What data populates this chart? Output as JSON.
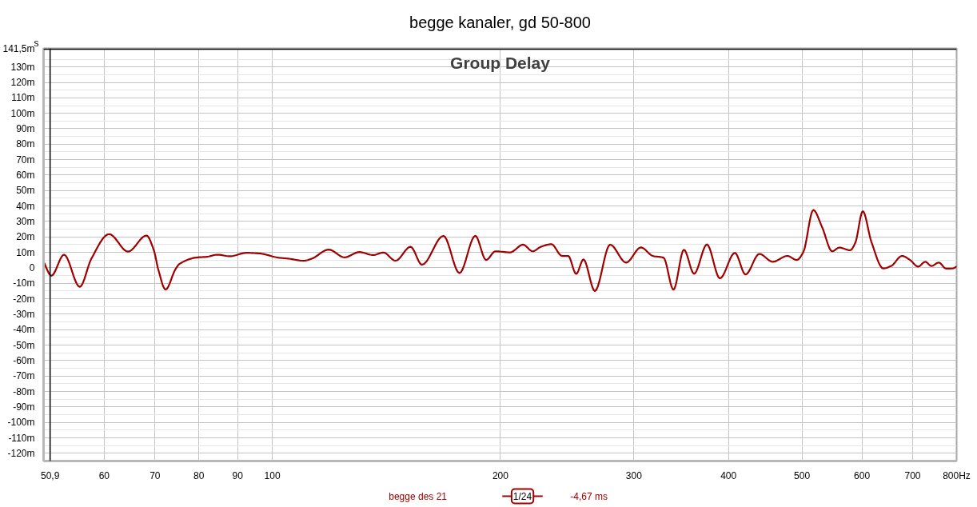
{
  "chart_data": {
    "type": "line",
    "title": "begge kanaler, gd 50-800",
    "subtitle": "Group Delay",
    "ylabel": "s",
    "log": "x",
    "xlim": [
      49.9,
      800
    ],
    "ylim": [
      -125,
      142
    ],
    "xticks": [
      {
        "value": 50.9,
        "label": "50,9"
      },
      60,
      70,
      80,
      90,
      100,
      200,
      300,
      400,
      500,
      600,
      700,
      {
        "value": 800,
        "label": "800Hz"
      }
    ],
    "yticks": [
      {
        "value": -120,
        "label": "-120m"
      },
      {
        "value": -110,
        "label": "-110m"
      },
      {
        "value": -100,
        "label": "-100m"
      },
      {
        "value": -90,
        "label": "-90m"
      },
      {
        "value": -80,
        "label": "-80m"
      },
      {
        "value": -70,
        "label": "-70m"
      },
      {
        "value": -60,
        "label": "-60m"
      },
      {
        "value": -50,
        "label": "-50m"
      },
      {
        "value": -40,
        "label": "-40m"
      },
      {
        "value": -30,
        "label": "-30m"
      },
      {
        "value": -20,
        "label": "-20m"
      },
      {
        "value": -10,
        "label": "-10m"
      },
      0,
      {
        "value": 10,
        "label": "10m"
      },
      {
        "value": 20,
        "label": "20m"
      },
      {
        "value": 30,
        "label": "30m"
      },
      {
        "value": 40,
        "label": "40m"
      },
      {
        "value": 50,
        "label": "50m"
      },
      {
        "value": 60,
        "label": "60m"
      },
      {
        "value": 70,
        "label": "70m"
      },
      {
        "value": 80,
        "label": "80m"
      },
      {
        "value": 90,
        "label": "90m"
      },
      {
        "value": 100,
        "label": "100m"
      },
      {
        "value": 110,
        "label": "110m"
      },
      {
        "value": 120,
        "label": "120m"
      },
      {
        "value": 130,
        "label": "130m"
      },
      {
        "value": 141.5,
        "label": "141,5m"
      }
    ],
    "grid": true,
    "legend": "bottom",
    "ref_lines": [
      {
        "axis": "x",
        "value": 50.9,
        "color": "#000000"
      },
      {
        "axis": "y",
        "value": 141.5,
        "color": "#000000"
      }
    ],
    "annotations": [
      "1/24",
      "-4,67 ms"
    ],
    "series": [
      {
        "name": "begge des 21",
        "color": "#a00000",
        "x": [
          49.9,
          51.1,
          53.1,
          55.7,
          57.7,
          60.9,
          64.5,
          68.2,
          69.8,
          70.7,
          72.3,
          74.5,
          75.4,
          79.8,
          81.8,
          84.6,
          87.9,
          92.4,
          96.2,
          101.8,
          105.2,
          110.0,
          112.7,
          118.7,
          124.5,
          130.3,
          135.8,
          140.2,
          145.4,
          152.2,
          157.6,
          168.2,
          176.6,
          185.3,
          191.5,
          197.0,
          206.0,
          214.2,
          220.6,
          226.1,
          233.5,
          241.2,
          245.7,
          251.8,
          257.4,
          266.5,
          279.1,
          293.0,
          306.5,
          317.8,
          328.3,
          338.4,
          349.3,
          360.3,
          374.6,
          389.7,
          407.8,
          421.2,
          439.3,
          457.5,
          478.3,
          492.1,
          502.1,
          517.6,
          531.5,
          548.1,
          560.1,
          578.8,
          587.9,
          601.6,
          617.3,
          640.3,
          656.2,
          677.6,
          694.4,
          711.6,
          727.4,
          741.0,
          757.9,
          774.9,
          790.6,
          800
        ],
        "values": [
          3.9,
          -5.1,
          8.5,
          -12.3,
          5.9,
          21.8,
          10.5,
          20.9,
          11.0,
          -0.9,
          -14.0,
          -0.9,
          2.5,
          6.8,
          7.1,
          8.5,
          7.5,
          9.7,
          9.3,
          6.6,
          5.9,
          4.6,
          5.9,
          11.8,
          6.8,
          10.2,
          8.3,
          9.9,
          4.6,
          13.6,
          2.0,
          20.7,
          -3.4,
          20.7,
          5.1,
          10.7,
          10.0,
          15.0,
          10.7,
          13.6,
          15.3,
          7.7,
          7.7,
          -3.9,
          5.4,
          -15.0,
          15.0,
          3.4,
          13.2,
          7.7,
          6.6,
          -14.1,
          11.7,
          -3.8,
          15.1,
          -6.8,
          9.7,
          -4.3,
          9.0,
          3.9,
          7.7,
          5.1,
          10.2,
          37.4,
          26.4,
          10.7,
          13.1,
          11.4,
          16.1,
          36.6,
          17.0,
          -0.4,
          1.3,
          7.7,
          5.1,
          0.8,
          3.9,
          1.2,
          3.4,
          -0.5,
          -0.4,
          0.8
        ]
      }
    ]
  }
}
